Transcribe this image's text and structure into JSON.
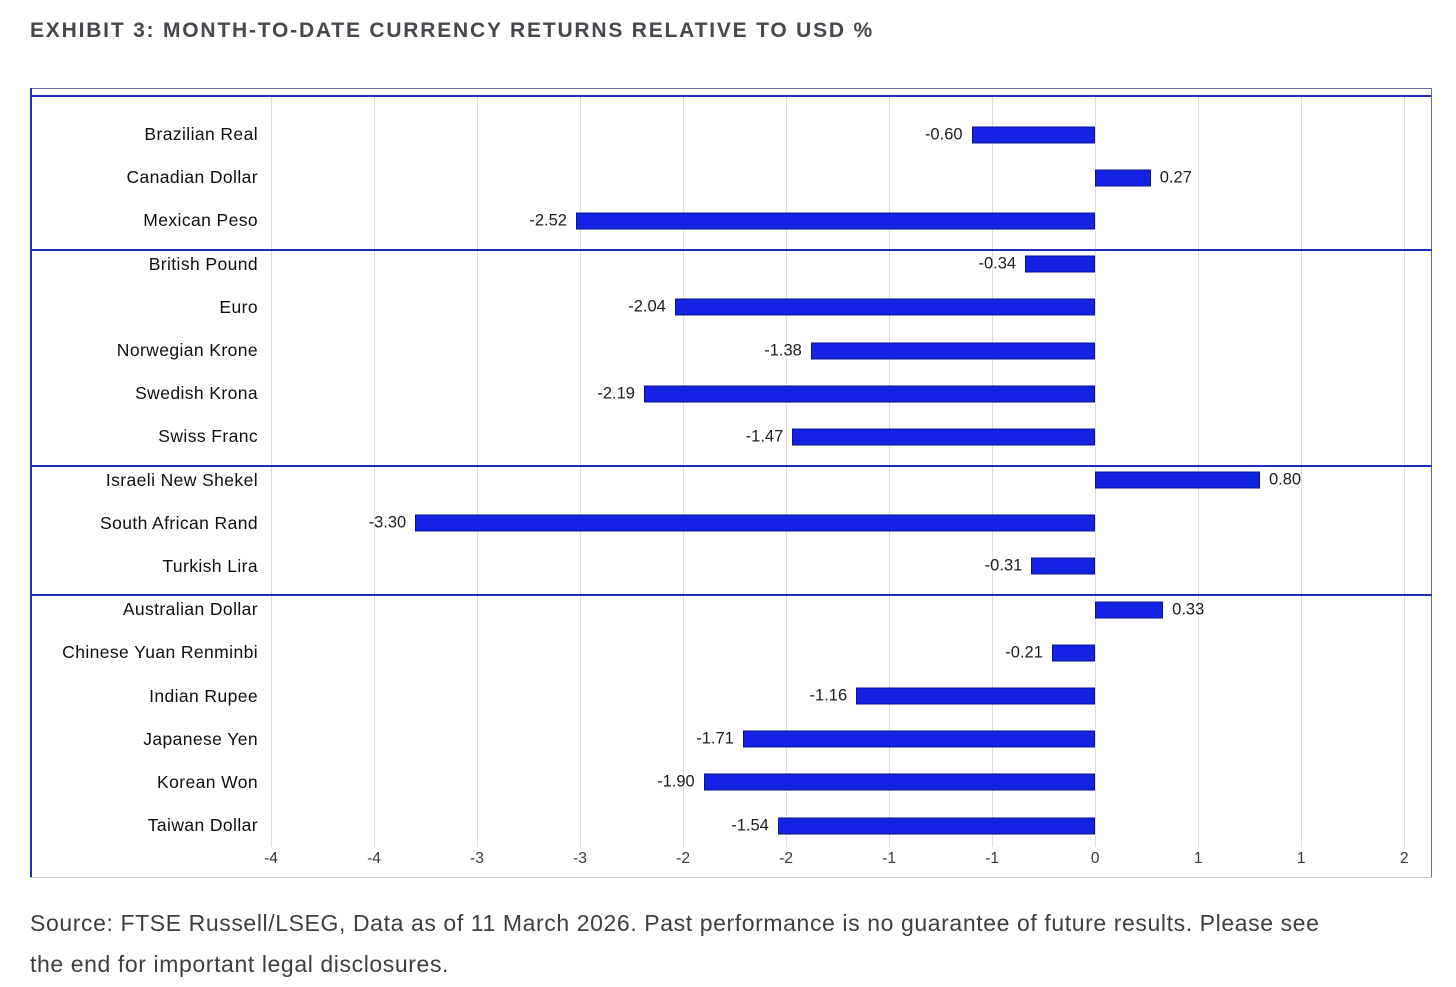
{
  "page": {
    "title": "EXHIBIT 3: MONTH-TO-DATE CURRENCY RETURNS RELATIVE TO USD %",
    "source_note_lines": [
      "Source: FTSE Russell/LSEG, Data as of 11 March 2026. Past performance is no guarantee of future results. Please see",
      "the end for important legal disclosures."
    ]
  },
  "chart_data": {
    "type": "bar",
    "orientation": "horizontal",
    "title": "EXHIBIT 3: MONTH-TO-DATE CURRENCY RETURNS RELATIVE TO USD %",
    "unit": "%",
    "xlim": [
      -4,
      1.63
    ],
    "grid": true,
    "zero_baseline": 0,
    "value_labels_shown": true,
    "colors": {
      "bar_fill": "#1322e3",
      "bar_border": "#0a128f",
      "blue_line": "#1f2bbd",
      "frame_gray": "#6a6a97",
      "grid_gray": "#dedede",
      "axis_gray": "#c9c9c9"
    },
    "x_ticks": [
      {
        "value": -4.0,
        "label": "-4"
      },
      {
        "value": -3.5,
        "label": "-4"
      },
      {
        "value": -3.0,
        "label": "-3"
      },
      {
        "value": -2.5,
        "label": "-3"
      },
      {
        "value": -2.0,
        "label": "-2"
      },
      {
        "value": -1.5,
        "label": "-2"
      },
      {
        "value": -1.0,
        "label": "-1"
      },
      {
        "value": -0.5,
        "label": "-1"
      },
      {
        "value": 0.0,
        "label": "0"
      },
      {
        "value": 0.5,
        "label": "1"
      },
      {
        "value": 1.0,
        "label": "1"
      },
      {
        "value": 1.5,
        "label": "2"
      }
    ],
    "groups": [
      {
        "items": [
          {
            "label": "Brazilian Real",
            "value": -0.6,
            "display": "-0.60"
          },
          {
            "label": "Canadian Dollar",
            "value": 0.27,
            "display": "0.27"
          },
          {
            "label": "Mexican Peso",
            "value": -2.52,
            "display": "-2.52"
          }
        ]
      },
      {
        "items": [
          {
            "label": "British Pound",
            "value": -0.34,
            "display": "-0.34"
          },
          {
            "label": "Euro",
            "value": -2.04,
            "display": "-2.04"
          },
          {
            "label": "Norwegian Krone",
            "value": -1.38,
            "display": "-1.38"
          },
          {
            "label": "Swedish Krona",
            "value": -2.19,
            "display": "-2.19"
          },
          {
            "label": "Swiss Franc",
            "value": -1.47,
            "display": "-1.47"
          }
        ]
      },
      {
        "items": [
          {
            "label": "Israeli New Shekel",
            "value": 0.8,
            "display": "0.80"
          },
          {
            "label": "South African Rand",
            "value": -3.3,
            "display": "-3.30"
          },
          {
            "label": "Turkish Lira",
            "value": -0.31,
            "display": "-0.31"
          }
        ]
      },
      {
        "items": [
          {
            "label": "Australian Dollar",
            "value": 0.33,
            "display": "0.33"
          },
          {
            "label": "Chinese Yuan Renminbi",
            "value": -0.21,
            "display": "-0.21"
          },
          {
            "label": "Indian Rupee",
            "value": -1.16,
            "display": "-1.16"
          },
          {
            "label": "Japanese Yen",
            "value": -1.71,
            "display": "-1.71"
          },
          {
            "label": "Korean Won",
            "value": -1.9,
            "display": "-1.90"
          },
          {
            "label": "Taiwan Dollar",
            "value": -1.54,
            "display": "-1.54"
          }
        ]
      }
    ]
  }
}
